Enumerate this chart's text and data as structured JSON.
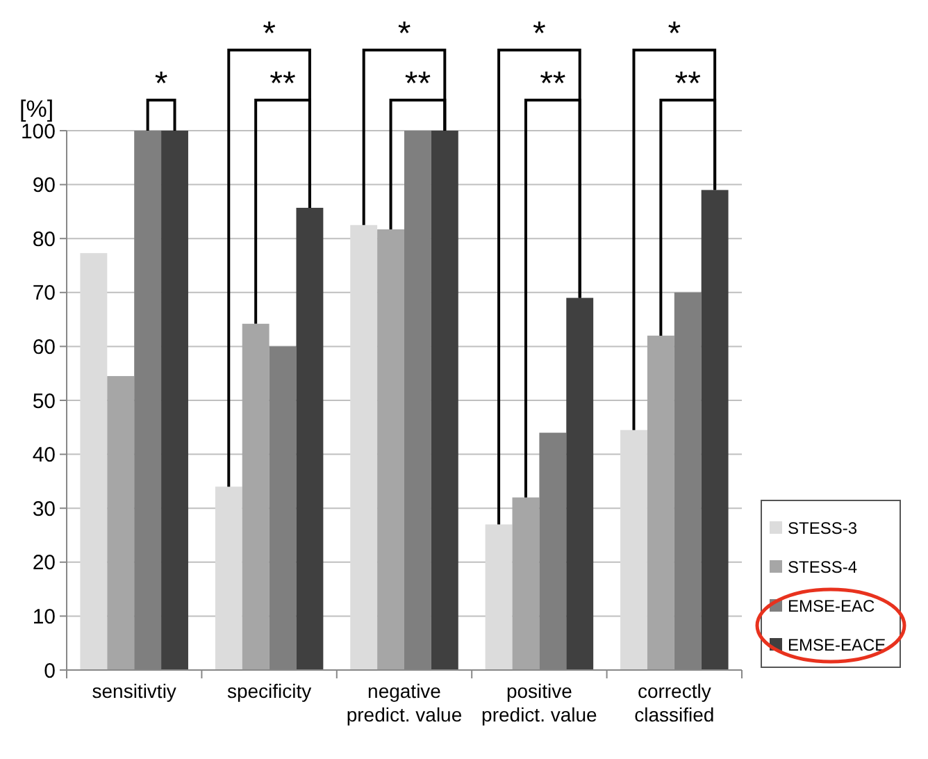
{
  "chart_data": {
    "type": "bar",
    "ylabel": "[%]",
    "categories": [
      "sensitivtiy",
      "specificity",
      "negative predict. value",
      "positive predict. value",
      "correctly classified"
    ],
    "series": [
      {
        "name": "STESS-3",
        "color": "#dcdcdc",
        "values": [
          77.3,
          34,
          82.5,
          27,
          44.5
        ]
      },
      {
        "name": "STESS-4",
        "color": "#a6a6a6",
        "values": [
          54.5,
          64.2,
          81.7,
          32,
          62
        ]
      },
      {
        "name": "EMSE-EAC",
        "color": "#7f7f7f",
        "values": [
          100,
          60,
          100,
          44,
          70
        ]
      },
      {
        "name": "EMSE-EACE",
        "color": "#404040",
        "values": [
          100,
          85.7,
          100,
          69,
          89
        ]
      }
    ],
    "ylim": [
      0,
      100
    ],
    "yticks": [
      0,
      10,
      20,
      30,
      40,
      50,
      60,
      70,
      80,
      90,
      100
    ],
    "grid": "y",
    "legend": "right",
    "annotations": [
      "*",
      "*",
      "**",
      "*",
      "**",
      "*",
      "**",
      "*",
      "**"
    ]
  }
}
